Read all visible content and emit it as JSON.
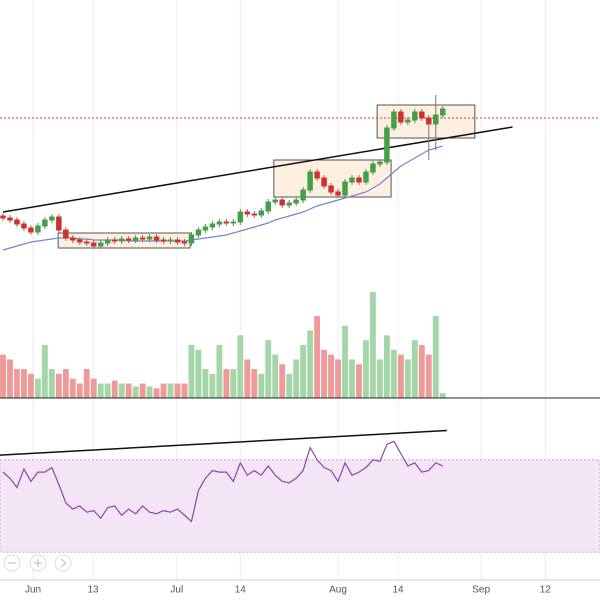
{
  "chart_data": {
    "type": "candlestick",
    "xlim": [
      -0.43,
      85.53
    ],
    "xticks": [
      {
        "value": 4.3,
        "label": "Jun"
      },
      {
        "value": 12.9,
        "label": "13"
      },
      {
        "value": 24.9,
        "label": "Jul"
      },
      {
        "value": 34.0,
        "label": "14"
      },
      {
        "value": 48.0,
        "label": "Aug"
      },
      {
        "value": 56.6,
        "label": "14"
      },
      {
        "value": 68.5,
        "label": "Sep"
      },
      {
        "value": 77.7,
        "label": "12"
      }
    ],
    "grid": true,
    "ylim": [
      0,
      290
    ],
    "up_color": "#43a047",
    "down_color": "#d32f2f",
    "volume_up_color": "#a5d6a7",
    "volume_down_color": "#ef9a9a",
    "open": [
      74,
      72,
      70,
      66,
      62,
      58,
      64,
      70,
      73,
      60,
      52,
      50,
      48,
      47,
      44,
      47,
      50,
      49,
      51,
      50,
      52,
      51,
      53,
      50,
      49,
      50,
      48,
      47,
      55,
      60,
      63,
      66,
      68,
      67,
      68,
      78,
      76,
      75,
      79,
      88,
      90,
      85,
      87,
      90,
      100,
      118,
      112,
      104,
      98,
      95,
      108,
      112,
      108,
      118,
      126,
      128,
      162,
      178,
      168,
      170,
      178,
      172,
      166,
      175
    ],
    "high": [
      77,
      75,
      73,
      69,
      65,
      67,
      73,
      76,
      76,
      63,
      55,
      53,
      51,
      50,
      50,
      53,
      53,
      54,
      54,
      55,
      55,
      56,
      56,
      53,
      53,
      53,
      51,
      58,
      63,
      66,
      69,
      71,
      71,
      71,
      81,
      81,
      79,
      82,
      91,
      93,
      93,
      90,
      93,
      103,
      121,
      121,
      115,
      107,
      101,
      111,
      115,
      115,
      121,
      129,
      131,
      165,
      181,
      181,
      173,
      181,
      181,
      175,
      195,
      184
    ],
    "low": [
      69,
      67,
      63,
      59,
      55,
      55,
      61,
      67,
      57,
      49,
      47,
      45,
      44,
      41,
      41,
      44,
      46,
      46,
      47,
      47,
      48,
      48,
      47,
      46,
      46,
      45,
      44,
      44,
      52,
      57,
      60,
      63,
      64,
      64,
      65,
      73,
      72,
      72,
      76,
      85,
      82,
      82,
      84,
      87,
      97,
      109,
      101,
      95,
      92,
      92,
      105,
      105,
      105,
      115,
      123,
      125,
      159,
      165,
      165,
      167,
      169,
      130,
      140,
      172
    ],
    "close": [
      72,
      70,
      66,
      62,
      58,
      64,
      70,
      73,
      60,
      52,
      50,
      48,
      47,
      44,
      47,
      50,
      49,
      51,
      50,
      52,
      51,
      53,
      50,
      49,
      50,
      48,
      47,
      55,
      60,
      63,
      66,
      68,
      67,
      68,
      78,
      76,
      75,
      79,
      88,
      90,
      85,
      87,
      90,
      100,
      118,
      112,
      104,
      98,
      95,
      108,
      112,
      108,
      118,
      126,
      128,
      162,
      178,
      168,
      170,
      178,
      172,
      166,
      175,
      181
    ],
    "moving_average": {
      "color": "#7986cb",
      "values": [
        40,
        42,
        44,
        46,
        48,
        49,
        50,
        51,
        52,
        52,
        52,
        51,
        51,
        50,
        50,
        50,
        50,
        50,
        49,
        49,
        49,
        49,
        49,
        49,
        49,
        49,
        49,
        50,
        51,
        52,
        53,
        54,
        55,
        57,
        59,
        61,
        63,
        65,
        67,
        70,
        72,
        74,
        76,
        78,
        81,
        84,
        86,
        88,
        90,
        92,
        94,
        96,
        98,
        102,
        106,
        112,
        118,
        124,
        128,
        132,
        136,
        140,
        142,
        144
      ]
    },
    "trendline": {
      "x": [
        0,
        73
      ],
      "values": [
        78,
        163
      ]
    },
    "resistance": {
      "value": 172,
      "color": "#e53935"
    },
    "boxes": [
      {
        "x": [
          7.9,
          26.8
        ],
        "values": [
          57,
          42
        ]
      },
      {
        "x": [
          38.8,
          55.6
        ],
        "values": [
          130,
          93
        ]
      },
      {
        "x": [
          53.6,
          67.6
        ],
        "values": [
          185,
          152
        ]
      }
    ],
    "volume": {
      "ylim": [
        0,
        112
      ],
      "values": [
        45,
        40,
        30,
        30,
        25,
        20,
        55,
        30,
        25,
        30,
        20,
        15,
        30,
        20,
        15,
        15,
        18,
        15,
        15,
        12,
        15,
        12,
        10,
        15,
        15,
        15,
        15,
        55,
        50,
        30,
        25,
        55,
        30,
        30,
        65,
        40,
        30,
        25,
        60,
        45,
        35,
        25,
        40,
        55,
        70,
        85,
        50,
        45,
        40,
        75,
        40,
        35,
        60,
        110,
        40,
        65,
        50,
        45,
        40,
        60,
        55,
        45,
        85,
        5
      ]
    },
    "rsi": {
      "ylim": [
        0,
        100
      ],
      "band": [
        80,
        20
      ],
      "color": "#8e44ad",
      "band_color": "#f3e5f5",
      "values": [
        72,
        68,
        62,
        74,
        66,
        72,
        72,
        75,
        64,
        52,
        48,
        50,
        46,
        47,
        42,
        49,
        50,
        44,
        48,
        45,
        50,
        46,
        45,
        47,
        46,
        48,
        44,
        40,
        60,
        68,
        73,
        72,
        72,
        66,
        78,
        70,
        73,
        70,
        76,
        70,
        66,
        65,
        68,
        73,
        88,
        80,
        75,
        73,
        66,
        78,
        70,
        72,
        75,
        80,
        79,
        90,
        92,
        84,
        76,
        78,
        72,
        73,
        78,
        76
      ],
      "trendline": {
        "x": [
          -0.43,
          63.6
        ],
        "values": [
          83,
          99
        ]
      }
    }
  }
}
